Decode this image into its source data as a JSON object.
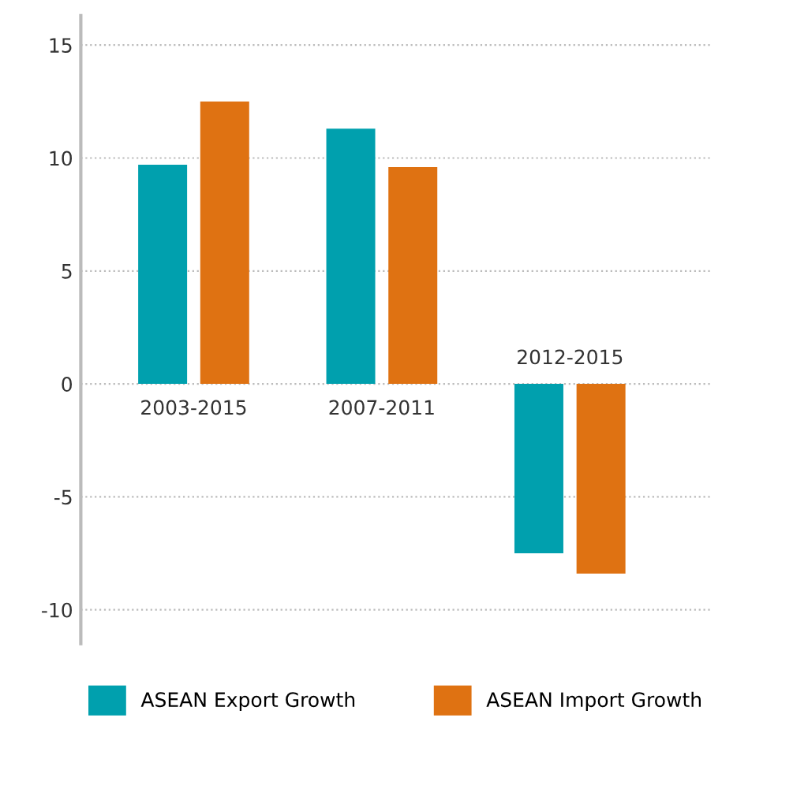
{
  "chart_data": {
    "type": "bar",
    "categories": [
      "2003-2015",
      "2007-2011",
      "2012-2015"
    ],
    "series": [
      {
        "name": "ASEAN Export Growth",
        "color": "#00a0ae",
        "values": [
          9.7,
          11.3,
          -7.5
        ]
      },
      {
        "name": "ASEAN Import Growth",
        "color": "#df7212",
        "values": [
          12.5,
          9.6,
          -8.4
        ]
      }
    ],
    "ylim": [
      -11.5,
      16.3
    ],
    "yticks": [
      -10,
      -5,
      0,
      5,
      10,
      15
    ],
    "grid": "y",
    "legend": "bottom"
  }
}
